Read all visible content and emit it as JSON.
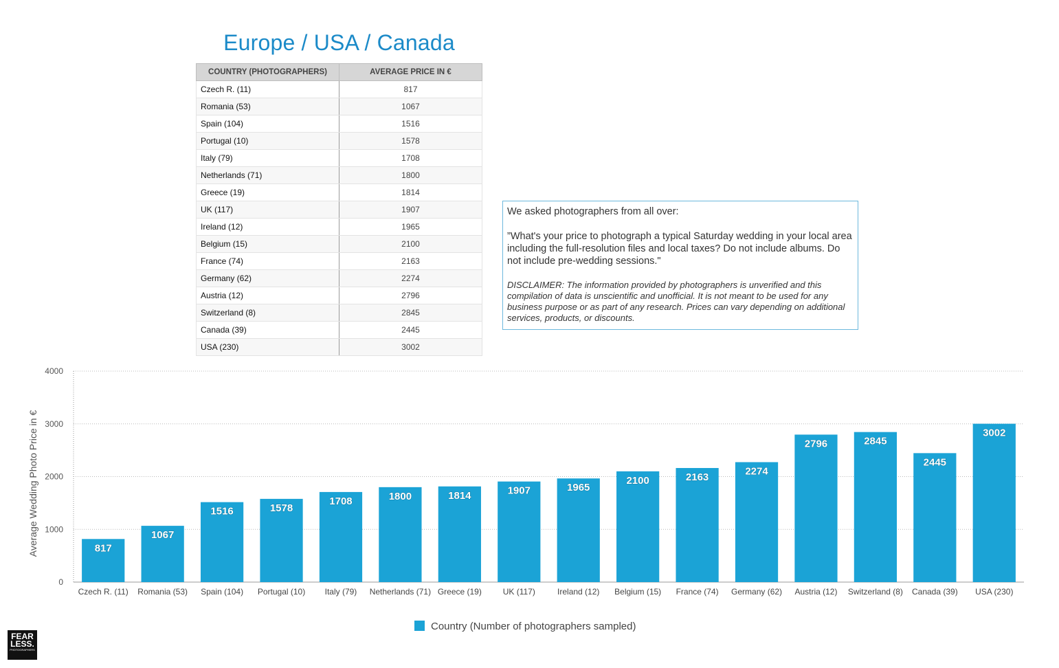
{
  "title": "Europe / USA / Canada",
  "table": {
    "headers": [
      "COUNTRY (PHOTOGRAPHERS)",
      "AVERAGE PRICE IN €"
    ],
    "rows": [
      {
        "country": "Czech R. (11)",
        "price": "817"
      },
      {
        "country": "Romania (53)",
        "price": "1067"
      },
      {
        "country": "Spain (104)",
        "price": "1516"
      },
      {
        "country": "Portugal (10)",
        "price": "1578"
      },
      {
        "country": "Italy (79)",
        "price": "1708"
      },
      {
        "country": "Netherlands (71)",
        "price": "1800"
      },
      {
        "country": "Greece (19)",
        "price": "1814"
      },
      {
        "country": "UK (117)",
        "price": "1907"
      },
      {
        "country": "Ireland (12)",
        "price": "1965"
      },
      {
        "country": "Belgium (15)",
        "price": "2100"
      },
      {
        "country": "France (74)",
        "price": "2163"
      },
      {
        "country": "Germany (62)",
        "price": "2274"
      },
      {
        "country": "Austria (12)",
        "price": "2796"
      },
      {
        "country": "Switzerland (8)",
        "price": "2845"
      },
      {
        "country": "Canada (39)",
        "price": "2445"
      },
      {
        "country": "USA (230)",
        "price": "3002"
      }
    ]
  },
  "note": {
    "intro": "We asked photographers from all over:",
    "question": "”What's your price to photograph a typical Saturday wedding in your local area including the full-resolution files and local taxes? Do not include albums. Do not include pre-wedding sessions.\"",
    "disclaimer": "DISCLAIMER: The information provided by photographers is unverified and this compilation of data is unscientific and unofficial. It is not meant to be used for any business purpose or as part of any research. Prices can vary depending on additional services, products, or discounts."
  },
  "logo": {
    "line1": "FEAR",
    "line2": "LESS.",
    "line3": "PHOTOGRAPHERS"
  },
  "chart_data": {
    "type": "bar",
    "categories": [
      "Czech R. (11)",
      "Romania (53)",
      "Spain (104)",
      "Portugal (10)",
      "Italy (79)",
      "Netherlands (71)",
      "Greece (19)",
      "UK (117)",
      "Ireland (12)",
      "Belgium (15)",
      "France (74)",
      "Germany (62)",
      "Austria (12)",
      "Switzerland (8)",
      "Canada (39)",
      "USA (230)"
    ],
    "series": [
      {
        "name": "Country (Number of photographers sampled)",
        "values": [
          817,
          1067,
          1516,
          1578,
          1708,
          1800,
          1814,
          1907,
          1965,
          2100,
          2163,
          2274,
          2796,
          2845,
          2445,
          3002
        ]
      }
    ],
    "ylabel": "Average Wedding Photo Price in €",
    "xlabel": "",
    "ylim": [
      0,
      4000
    ],
    "yticks": [
      0,
      1000,
      2000,
      3000,
      4000
    ],
    "grid": true,
    "legend_position": "bottom-center",
    "bar_color": "#1ba3d6"
  }
}
